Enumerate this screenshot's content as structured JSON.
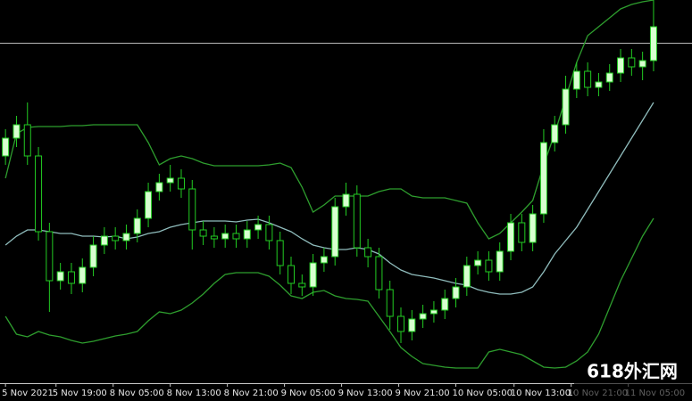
{
  "chart_data": {
    "type": "candlestick",
    "xlim": [
      -0.5,
      62.5
    ],
    "ylim": [
      0,
      430
    ],
    "xticks": [
      {
        "value": 0,
        "label": "5 Nov 2021"
      },
      {
        "value": 4.6,
        "label": "5 Nov 19:00"
      },
      {
        "value": 9.8,
        "label": "8 Nov 05:00"
      },
      {
        "value": 15,
        "label": "8 Nov 13:00"
      },
      {
        "value": 20.2,
        "label": "8 Nov 21:00"
      },
      {
        "value": 25.4,
        "label": "9 Nov 05:00"
      },
      {
        "value": 30.6,
        "label": "9 Nov 13:00"
      },
      {
        "value": 35.8,
        "label": "9 Nov 21:00"
      },
      {
        "value": 41,
        "label": "10 Nov 05:00"
      },
      {
        "value": 46.3,
        "label": "10 Nov 13:00"
      },
      {
        "value": 51.5,
        "label": "10 Nov 21:00"
      },
      {
        "value": 56.7,
        "label": "11 Nov 05:00"
      }
    ],
    "bull_color": "#d8ffd0",
    "bear_color": "#000000",
    "wick_color": "#22cc22",
    "open": [
      255,
      275,
      290,
      255,
      170,
      115,
      125,
      112,
      130,
      155,
      165,
      160,
      168,
      185,
      215,
      225,
      230,
      218,
      172,
      165,
      162,
      168,
      162,
      172,
      178,
      160,
      132,
      112,
      108,
      135,
      142,
      198,
      212,
      152,
      142,
      105,
      75,
      58,
      72,
      78,
      82,
      95,
      108,
      132,
      138,
      125,
      148,
      180,
      158,
      190,
      270,
      290,
      330,
      350,
      332,
      338,
      348,
      365,
      355,
      362
    ],
    "high": [
      285,
      300,
      315,
      265,
      180,
      135,
      135,
      140,
      165,
      175,
      175,
      178,
      195,
      225,
      235,
      245,
      240,
      228,
      182,
      175,
      178,
      178,
      182,
      188,
      188,
      170,
      142,
      122,
      145,
      152,
      208,
      225,
      222,
      162,
      152,
      115,
      85,
      82,
      88,
      92,
      105,
      118,
      142,
      148,
      148,
      158,
      190,
      190,
      200,
      285,
      300,
      345,
      360,
      360,
      348,
      358,
      375,
      375,
      372,
      430
    ],
    "low": [
      245,
      265,
      245,
      160,
      80,
      105,
      100,
      102,
      120,
      145,
      150,
      150,
      158,
      175,
      205,
      215,
      208,
      150,
      155,
      152,
      152,
      152,
      152,
      162,
      150,
      122,
      100,
      98,
      98,
      125,
      132,
      188,
      142,
      130,
      95,
      60,
      45,
      48,
      62,
      68,
      72,
      85,
      98,
      122,
      115,
      115,
      138,
      148,
      148,
      180,
      260,
      280,
      320,
      322,
      322,
      328,
      338,
      345,
      340,
      350
    ],
    "close": [
      275,
      290,
      255,
      170,
      115,
      125,
      112,
      130,
      155,
      165,
      160,
      168,
      185,
      215,
      225,
      230,
      218,
      172,
      165,
      162,
      168,
      162,
      172,
      178,
      160,
      132,
      112,
      108,
      135,
      142,
      198,
      212,
      152,
      142,
      105,
      75,
      58,
      72,
      78,
      82,
      95,
      108,
      132,
      138,
      125,
      148,
      180,
      158,
      190,
      270,
      290,
      330,
      350,
      332,
      338,
      348,
      365,
      355,
      362,
      400
    ],
    "series": [
      {
        "color": "#2e9e2e",
        "values": [
          230,
          280,
          287,
          288,
          288,
          288,
          289,
          289,
          290,
          290,
          290,
          290,
          290,
          270,
          245,
          252,
          255,
          252,
          247,
          244,
          244,
          244,
          244,
          244,
          245,
          247,
          242,
          220,
          192,
          200,
          210,
          210,
          210,
          210,
          215,
          218,
          218,
          210,
          208,
          208,
          208,
          205,
          202,
          180,
          162,
          168,
          180,
          192,
          205,
          245,
          280,
          320,
          360,
          390,
          400,
          410,
          420,
          425,
          428,
          430
        ]
      },
      {
        "color": "#8fbcbc",
        "values": [
          155,
          165,
          172,
          172,
          170,
          168,
          168,
          165,
          165,
          164,
          165,
          162,
          164,
          168,
          170,
          175,
          178,
          180,
          182,
          182,
          182,
          181,
          183,
          184,
          180,
          175,
          170,
          162,
          155,
          152,
          150,
          150,
          152,
          150,
          145,
          135,
          127,
          122,
          120,
          118,
          115,
          112,
          110,
          105,
          102,
          100,
          100,
          102,
          108,
          125,
          145,
          160,
          175,
          195,
          215,
          235,
          255,
          275,
          295,
          315
        ]
      },
      {
        "color": "#2e9e2e",
        "values": [
          75,
          55,
          52,
          58,
          54,
          52,
          48,
          45,
          47,
          50,
          53,
          55,
          58,
          70,
          80,
          78,
          82,
          90,
          100,
          112,
          122,
          124,
          124,
          124,
          120,
          110,
          98,
          95,
          102,
          104,
          98,
          95,
          94,
          92,
          75,
          58,
          40,
          30,
          22,
          20,
          18,
          17,
          17,
          17,
          35,
          38,
          35,
          32,
          25,
          18,
          17,
          18,
          25,
          35,
          55,
          85,
          115,
          140,
          165,
          185
        ]
      }
    ],
    "hline": {
      "value": 382,
      "color": "#b8b8b8"
    },
    "watermark": "618外汇网"
  }
}
